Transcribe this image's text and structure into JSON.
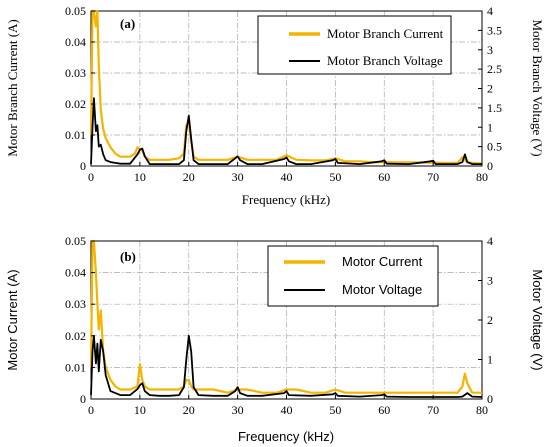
{
  "chart_data": [
    {
      "type": "line",
      "panel_label": "(a)",
      "xlabel": "Frequency (kHz)",
      "ylabel_left": "Motor Branch Current (A)",
      "ylabel_right": "Motor Branch Voltage (V)",
      "xlim": [
        0,
        80
      ],
      "ylim_left": [
        0,
        0.05
      ],
      "ylim_right": [
        0,
        4
      ],
      "x_ticks": [
        "0",
        "10",
        "20",
        "30",
        "40",
        "50",
        "60",
        "70",
        "80"
      ],
      "y_left_ticks": [
        "0",
        "0.01",
        "0.02",
        "0.03",
        "0.04",
        "0.05"
      ],
      "y_right_ticks": [
        "0",
        "0.5",
        "1",
        "1.5",
        "2",
        "2.5",
        "3",
        "3.5",
        "4"
      ],
      "grid": true,
      "legend_position": "top-right",
      "series": [
        {
          "name": "Motor Branch Current",
          "axis": "left",
          "color": "#f4b400",
          "x": [
            0,
            0.3,
            0.6,
            1,
            1.3,
            1.6,
            2,
            2.5,
            3,
            4,
            5,
            6,
            7,
            8,
            9,
            9.5,
            10,
            10.5,
            11,
            12,
            14,
            16,
            18,
            19,
            19.5,
            20,
            20.5,
            21,
            22,
            25,
            28,
            30,
            32,
            35,
            38,
            40,
            42,
            45,
            48,
            50,
            52,
            55,
            58,
            60,
            62,
            65,
            68,
            70,
            72,
            75,
            76,
            77,
            78,
            80
          ],
          "values": [
            0.01,
            0.05,
            0.05,
            0.045,
            0.05,
            0.032,
            0.018,
            0.012,
            0.009,
            0.006,
            0.004,
            0.003,
            0.003,
            0.003,
            0.004,
            0.006,
            0.0055,
            0.005,
            0.003,
            0.002,
            0.002,
            0.002,
            0.0025,
            0.004,
            0.013,
            0.014,
            0.008,
            0.003,
            0.002,
            0.002,
            0.002,
            0.003,
            0.002,
            0.002,
            0.002,
            0.0035,
            0.002,
            0.0018,
            0.0018,
            0.0025,
            0.0015,
            0.0015,
            0.0012,
            0.0013,
            0.0012,
            0.0012,
            0.0011,
            0.0011,
            0.001,
            0.001,
            0.0028,
            0.0012,
            0.001,
            0.0008
          ]
        },
        {
          "name": "Motor Branch Voltage",
          "axis": "right",
          "color": "#000000",
          "x": [
            0,
            0.3,
            0.6,
            1,
            1.3,
            1.6,
            2,
            2.5,
            3,
            4,
            5,
            6,
            8,
            9.5,
            10,
            10.5,
            11,
            12,
            14,
            16,
            18,
            19,
            19.5,
            20,
            20.5,
            21,
            22,
            25,
            28,
            29.5,
            30,
            30.5,
            32,
            35,
            39.5,
            40,
            40.5,
            42,
            45,
            49.5,
            50,
            50.5,
            55,
            59.5,
            60,
            60.5,
            65,
            69.5,
            70,
            70.5,
            75,
            76,
            76.5,
            77,
            78,
            80
          ],
          "values": [
            0.05,
            1.0,
            1.75,
            0.9,
            1.05,
            0.5,
            0.55,
            0.3,
            0.15,
            0.1,
            0.08,
            0.06,
            0.06,
            0.3,
            0.42,
            0.45,
            0.25,
            0.05,
            0.05,
            0.05,
            0.05,
            0.15,
            0.9,
            1.3,
            0.7,
            0.15,
            0.05,
            0.05,
            0.05,
            0.2,
            0.25,
            0.15,
            0.05,
            0.05,
            0.18,
            0.22,
            0.12,
            0.05,
            0.05,
            0.15,
            0.18,
            0.08,
            0.05,
            0.12,
            0.15,
            0.06,
            0.05,
            0.12,
            0.14,
            0.05,
            0.05,
            0.1,
            0.3,
            0.1,
            0.05,
            0.05
          ]
        }
      ]
    },
    {
      "type": "line",
      "panel_label": "(b)",
      "xlabel": "Frequency (kHz)",
      "ylabel_left": "Motor  Current (A)",
      "ylabel_right": "Motor Voltage (V)",
      "xlim": [
        0,
        80
      ],
      "ylim_left": [
        0,
        0.05
      ],
      "ylim_right": [
        0,
        4
      ],
      "x_ticks": [
        "0",
        "10",
        "20",
        "30",
        "40",
        "50",
        "60",
        "70",
        "80"
      ],
      "y_left_ticks": [
        "0",
        "0.01",
        "0.02",
        "0.03",
        "0.04",
        "0.05"
      ],
      "y_right_ticks": [
        "0",
        "1",
        "2",
        "3",
        "4"
      ],
      "grid": true,
      "legend_position": "top-right",
      "series": [
        {
          "name": "Motor Current",
          "axis": "left",
          "color": "#f4b400",
          "x": [
            0,
            0.3,
            0.6,
            1,
            1.3,
            1.6,
            2,
            2.5,
            3,
            4,
            5,
            6,
            8,
            9.5,
            10,
            10.5,
            11,
            12,
            14,
            16,
            18,
            19,
            19.5,
            20,
            20.5,
            21,
            22,
            25,
            28,
            30,
            32,
            35,
            38,
            40,
            42,
            45,
            48,
            50,
            52,
            55,
            58,
            60,
            62,
            65,
            68,
            70,
            72,
            75,
            76,
            76.5,
            77,
            78,
            80
          ],
          "values": [
            0.01,
            0.05,
            0.05,
            0.04,
            0.03,
            0.022,
            0.028,
            0.015,
            0.01,
            0.006,
            0.004,
            0.003,
            0.003,
            0.004,
            0.011,
            0.006,
            0.004,
            0.003,
            0.003,
            0.003,
            0.003,
            0.004,
            0.006,
            0.006,
            0.004,
            0.003,
            0.003,
            0.003,
            0.002,
            0.003,
            0.003,
            0.002,
            0.002,
            0.003,
            0.003,
            0.002,
            0.002,
            0.003,
            0.002,
            0.002,
            0.002,
            0.002,
            0.002,
            0.002,
            0.002,
            0.002,
            0.002,
            0.002,
            0.004,
            0.008,
            0.005,
            0.002,
            0.002
          ]
        },
        {
          "name": "Motor Voltage",
          "axis": "right",
          "color": "#000000",
          "x": [
            0,
            0.3,
            0.6,
            1,
            1.3,
            1.6,
            2,
            2.5,
            3,
            3.5,
            4,
            5,
            6,
            8,
            9.5,
            10,
            10.5,
            11,
            12,
            14,
            16,
            18,
            19,
            19.5,
            20,
            20.5,
            21,
            22,
            25,
            28,
            29.5,
            30,
            30.5,
            32,
            35,
            39.5,
            40,
            40.5,
            45,
            49.5,
            50,
            50.5,
            55,
            59.5,
            60,
            60.5,
            65,
            70,
            75,
            76,
            77,
            78,
            80
          ],
          "values": [
            0.1,
            1.2,
            1.6,
            0.9,
            1.4,
            0.7,
            1.5,
            1.2,
            0.6,
            0.4,
            0.2,
            0.15,
            0.1,
            0.1,
            0.25,
            0.35,
            0.4,
            0.2,
            0.1,
            0.08,
            0.08,
            0.1,
            0.3,
            1.0,
            1.6,
            1.2,
            0.3,
            0.1,
            0.08,
            0.08,
            0.2,
            0.3,
            0.15,
            0.08,
            0.08,
            0.15,
            0.2,
            0.1,
            0.08,
            0.12,
            0.15,
            0.08,
            0.06,
            0.1,
            0.12,
            0.06,
            0.05,
            0.05,
            0.05,
            0.06,
            0.15,
            0.06,
            0.05
          ]
        }
      ]
    }
  ]
}
